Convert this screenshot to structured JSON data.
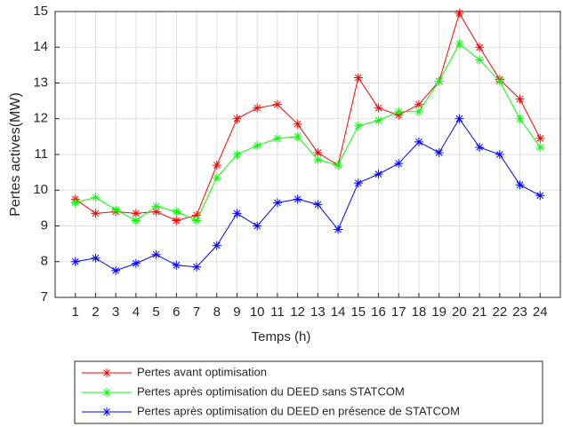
{
  "chart_data": {
    "type": "line",
    "x_label": "Temps (h)",
    "y_label": "Pertes actives(MW)",
    "x": [
      1,
      2,
      3,
      4,
      5,
      6,
      7,
      8,
      9,
      10,
      11,
      12,
      13,
      14,
      15,
      16,
      17,
      18,
      19,
      20,
      21,
      22,
      23,
      24
    ],
    "xlim": [
      0,
      25
    ],
    "xticks": [
      1,
      2,
      3,
      4,
      5,
      6,
      7,
      8,
      9,
      10,
      11,
      12,
      13,
      14,
      15,
      16,
      17,
      18,
      19,
      20,
      21,
      22,
      23,
      24
    ],
    "ylim": [
      7,
      15
    ],
    "yticks": [
      7,
      8,
      9,
      10,
      11,
      12,
      13,
      14,
      15
    ],
    "grid": true,
    "legend": "bottom",
    "marker": "asterisk",
    "series": [
      {
        "name": "Pertes avant optimisation",
        "color": "#ff0000",
        "values": [
          9.75,
          9.35,
          9.4,
          9.35,
          9.4,
          9.15,
          9.3,
          10.7,
          12.0,
          12.3,
          12.4,
          11.85,
          11.05,
          10.7,
          13.15,
          12.3,
          12.1,
          12.4,
          13.05,
          14.95,
          14.0,
          13.1,
          12.55,
          11.45
        ]
      },
      {
        "name": "Pertes après optimisation du DEED sans STATCOM",
        "color": "#00ff00",
        "values": [
          9.65,
          9.8,
          9.45,
          9.15,
          9.55,
          9.4,
          9.15,
          10.35,
          11.0,
          11.25,
          11.45,
          11.5,
          10.85,
          10.7,
          11.8,
          11.95,
          12.2,
          12.2,
          13.05,
          14.1,
          13.65,
          13.05,
          12.0,
          11.2
        ]
      },
      {
        "name": "Pertes après optimisation du DEED en présence de STATCOM",
        "color": "#0000ff",
        "values": [
          8.0,
          8.1,
          7.75,
          7.95,
          8.2,
          7.9,
          7.85,
          8.45,
          9.35,
          9.0,
          9.65,
          9.75,
          9.6,
          8.9,
          10.2,
          10.45,
          10.75,
          11.35,
          11.05,
          12.0,
          11.2,
          11.0,
          10.15,
          9.85
        ]
      }
    ]
  }
}
